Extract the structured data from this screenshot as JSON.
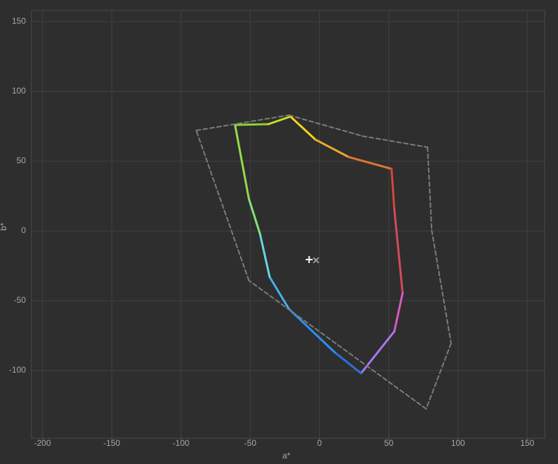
{
  "chart_data": {
    "type": "line",
    "x_label": "a*",
    "y_label": "b*",
    "xlim": [
      -208,
      162.6
    ],
    "ylim": [
      -148.5,
      158
    ],
    "xticks": [
      -200,
      -150,
      -100,
      -50,
      0,
      50,
      100,
      150
    ],
    "yticks": [
      -100,
      -50,
      0,
      50,
      100,
      150
    ],
    "grid": true,
    "series": [
      {
        "closed": true,
        "dash": false,
        "x": [
          -61,
          -37,
          -21,
          -3,
          21,
          52,
          54,
          60,
          54,
          30,
          11,
          -22,
          -36,
          -43,
          -51
        ],
        "values": [
          76,
          76.5,
          82,
          65.5,
          53,
          44.5,
          15.5,
          -44.5,
          -72,
          -102,
          -87,
          -56,
          -33,
          -2,
          23
        ],
        "color": [
          "#8ed62a",
          "#c4e020",
          "#f2d418",
          "#e8a82c",
          "#df742e",
          "#d6463a",
          "#d44a5c",
          "#d858c0",
          "#a878f0",
          "#2f6fdc",
          "#2f8cee",
          "#44b2f2",
          "#66d6e4",
          "#86e07c",
          "#92dc4c"
        ]
      },
      {
        "closed": true,
        "dash": true,
        "x": [
          -89,
          -22,
          31,
          78,
          81,
          95,
          77,
          -51
        ],
        "values": [
          72,
          83,
          68,
          60,
          0.5,
          -80.5,
          -127.5,
          -35.5
        ],
        "color": "#7c7c7c"
      }
    ],
    "markers": [
      {
        "shape": "plus",
        "x": -7.5,
        "value": -20.5,
        "color": "#ffffff"
      },
      {
        "shape": "cross",
        "x": -2.5,
        "value": -21,
        "color": "#9a9a9a"
      }
    ]
  }
}
